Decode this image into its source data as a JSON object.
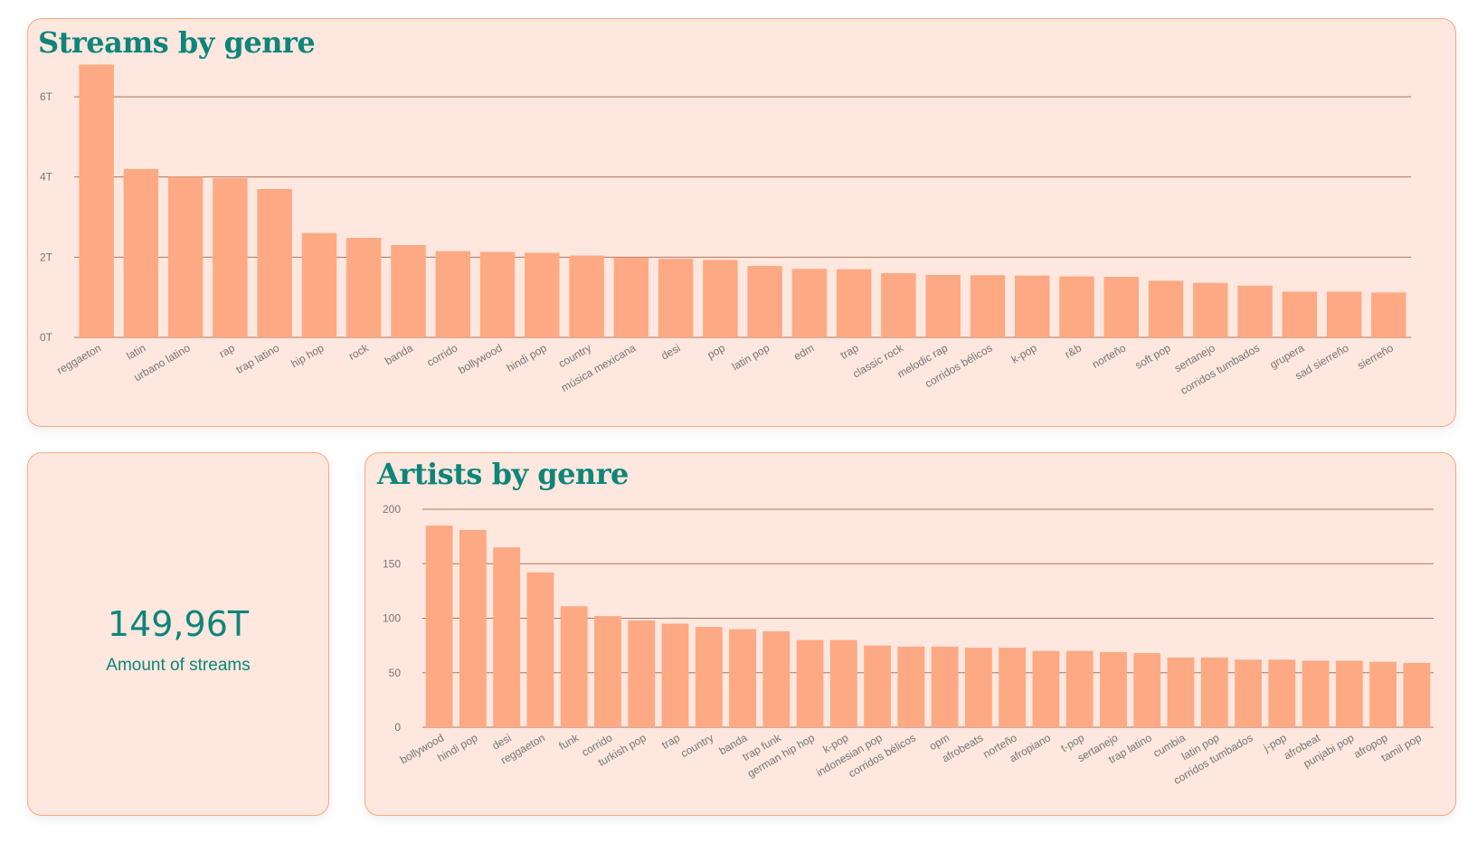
{
  "colors": {
    "bar": "#fda984",
    "gridline": "#b0735d",
    "title": "#0f857a",
    "card_bg": "#fde7de",
    "card_border": "#f8a985"
  },
  "kpi": {
    "value": "149,96T",
    "label": "Amount of streams"
  },
  "chart_data": [
    {
      "type": "bar",
      "title": "Streams by genre",
      "ylim": [
        0,
        7
      ],
      "yticks": [
        0,
        2,
        4,
        6
      ],
      "ytick_labels": [
        "0T",
        "2T",
        "4T",
        "6T"
      ],
      "grid": true,
      "categories": [
        "reggaeton",
        "latin",
        "urbano latino",
        "rap",
        "trap latino",
        "hip hop",
        "rock",
        "banda",
        "corrido",
        "bollywood",
        "hindi pop",
        "country",
        "música mexicana",
        "desi",
        "pop",
        "latin pop",
        "edm",
        "trap",
        "classic rock",
        "melodic rap",
        "corridos bélicos",
        "k-pop",
        "r&b",
        "norteño",
        "soft pop",
        "sertanejo",
        "corridos tumbados",
        "grupera",
        "sad sierreño",
        "sierreño"
      ],
      "values": [
        6.8,
        4.2,
        4.0,
        3.97,
        3.7,
        2.6,
        2.48,
        2.3,
        2.15,
        2.13,
        2.11,
        2.04,
        1.99,
        1.96,
        1.93,
        1.78,
        1.71,
        1.7,
        1.6,
        1.56,
        1.55,
        1.54,
        1.52,
        1.51,
        1.41,
        1.36,
        1.29,
        1.14,
        1.14,
        1.12
      ]
    },
    {
      "type": "bar",
      "title": "Artists by genre",
      "ylim": [
        0,
        200
      ],
      "yticks": [
        0,
        50,
        100,
        150,
        200
      ],
      "ytick_labels": [
        "0",
        "50",
        "100",
        "150",
        "200"
      ],
      "grid": true,
      "categories": [
        "bollywood",
        "hindi pop",
        "desi",
        "reggaeton",
        "funk",
        "corrido",
        "turkish pop",
        "trap",
        "country",
        "banda",
        "trap funk",
        "german hip hop",
        "k-pop",
        "indonesian pop",
        "corridos bélicos",
        "opm",
        "afrobeats",
        "norteño",
        "afropiano",
        "t-pop",
        "sertanejo",
        "trap latino",
        "cumbia",
        "latin pop",
        "corridos tumbados",
        "j-pop",
        "afrobeat",
        "punjabi pop",
        "afropop",
        "tamil pop"
      ],
      "values": [
        185,
        181,
        165,
        142,
        111,
        102,
        98,
        95,
        92,
        90,
        88,
        80,
        80,
        75,
        74,
        74,
        73,
        73,
        70,
        70,
        69,
        68,
        64,
        64,
        62,
        62,
        61,
        61,
        60,
        59
      ]
    }
  ]
}
